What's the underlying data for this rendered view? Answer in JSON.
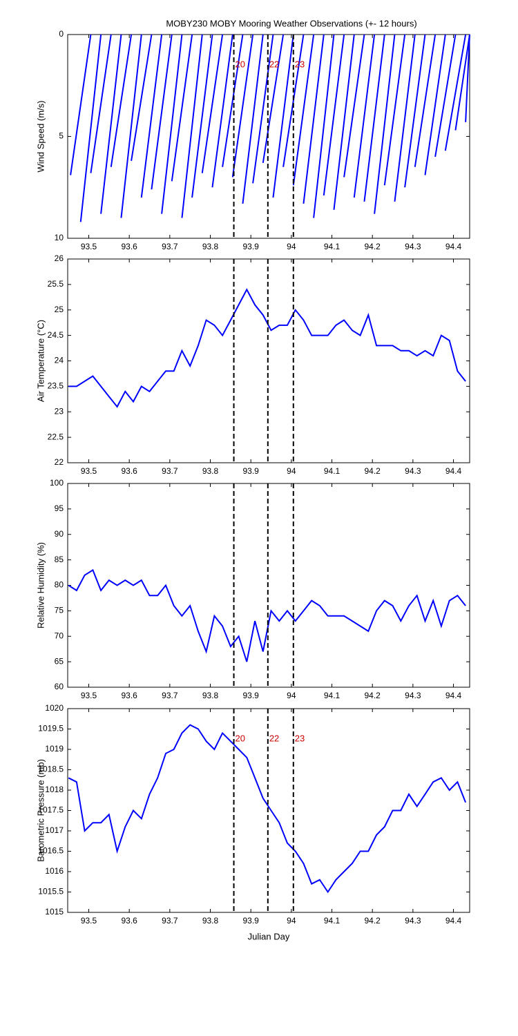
{
  "title": "MOBY230 MOBY Mooring Weather Observations (+- 12 hours)",
  "x_axis": {
    "label": "Julian Day",
    "xlim": [
      93.448,
      94.44
    ],
    "xticks": [
      93.5,
      93.6,
      93.7,
      93.8,
      93.9,
      94,
      94.1,
      94.2,
      94.3,
      94.4
    ]
  },
  "event_lines": {
    "x": [
      93.858,
      93.942,
      94.005
    ],
    "labels": [
      "20",
      "22",
      "23"
    ]
  },
  "chart_data": [
    {
      "type": "stick",
      "ylabel": "Wind Speed (m/s)",
      "color": "#0000ff",
      "ylim": [
        0,
        10
      ],
      "yticks": [
        0,
        5,
        10
      ],
      "inverted": true,
      "event_labels": true,
      "x": [
        93.455,
        93.48,
        93.505,
        93.53,
        93.555,
        93.58,
        93.605,
        93.63,
        93.655,
        93.68,
        93.705,
        93.73,
        93.755,
        93.78,
        93.805,
        93.83,
        93.855,
        93.88,
        93.905,
        93.93,
        93.955,
        93.98,
        94.005,
        94.03,
        94.055,
        94.08,
        94.105,
        94.13,
        94.155,
        94.18,
        94.205,
        94.23,
        94.255,
        94.28,
        94.305,
        94.33,
        94.355,
        94.38,
        94.405,
        94.43
      ],
      "x_top": [
        93.505,
        93.53,
        93.555,
        93.58,
        93.605,
        93.63,
        93.655,
        93.68,
        93.705,
        93.73,
        93.755,
        93.78,
        93.805,
        93.83,
        93.855,
        93.88,
        93.905,
        93.93,
        93.955,
        93.98,
        94.005,
        94.03,
        94.055,
        94.08,
        94.105,
        94.13,
        94.155,
        94.18,
        94.205,
        94.23,
        94.255,
        94.28,
        94.305,
        94.33,
        94.355,
        94.38,
        94.405,
        94.43,
        94.44,
        94.44
      ],
      "values": [
        6.9,
        9.2,
        6.8,
        8.8,
        6.5,
        9.0,
        6.2,
        8.0,
        7.6,
        8.8,
        7.2,
        9.0,
        8.0,
        6.8,
        7.5,
        6.5,
        7.0,
        8.3,
        7.3,
        6.3,
        8.0,
        6.5,
        7.4,
        8.3,
        9.0,
        7.9,
        8.6,
        7.0,
        8.0,
        8.2,
        8.8,
        7.4,
        8.2,
        7.5,
        6.5,
        6.9,
        6.0,
        5.7,
        4.7,
        4.3
      ]
    },
    {
      "type": "line",
      "ylabel": "Air Temperature (°C)",
      "color": "#0000ff",
      "ylim": [
        22,
        26
      ],
      "yticks": [
        22,
        22.5,
        23,
        23.5,
        24,
        24.5,
        25,
        25.5,
        26
      ],
      "x": [
        93.45,
        93.47,
        93.49,
        93.51,
        93.53,
        93.55,
        93.57,
        93.59,
        93.61,
        93.63,
        93.65,
        93.67,
        93.69,
        93.71,
        93.73,
        93.75,
        93.77,
        93.79,
        93.81,
        93.83,
        93.85,
        93.87,
        93.89,
        93.91,
        93.93,
        93.95,
        93.97,
        93.99,
        94.01,
        94.03,
        94.05,
        94.07,
        94.09,
        94.11,
        94.13,
        94.15,
        94.17,
        94.19,
        94.21,
        94.23,
        94.25,
        94.27,
        94.29,
        94.31,
        94.33,
        94.35,
        94.37,
        94.39,
        94.41,
        94.43
      ],
      "values": [
        23.5,
        23.5,
        23.6,
        23.7,
        23.5,
        23.3,
        23.1,
        23.4,
        23.2,
        23.5,
        23.4,
        23.6,
        23.8,
        23.8,
        24.2,
        23.9,
        24.3,
        24.8,
        24.7,
        24.5,
        24.8,
        25.1,
        25.4,
        25.1,
        24.9,
        24.6,
        24.7,
        24.7,
        25.0,
        24.8,
        24.5,
        24.5,
        24.5,
        24.7,
        24.8,
        24.6,
        24.5,
        24.9,
        24.3,
        24.3,
        24.3,
        24.2,
        24.2,
        24.1,
        24.2,
        24.1,
        24.5,
        24.4,
        23.8,
        23.6
      ]
    },
    {
      "type": "line",
      "ylabel": "Relative Humidity (%)",
      "color": "#0000ff",
      "ylim": [
        60,
        100
      ],
      "yticks": [
        60,
        65,
        70,
        75,
        80,
        85,
        90,
        95,
        100
      ],
      "x": [
        93.45,
        93.47,
        93.49,
        93.51,
        93.53,
        93.55,
        93.57,
        93.59,
        93.61,
        93.63,
        93.65,
        93.67,
        93.69,
        93.71,
        93.73,
        93.75,
        93.77,
        93.79,
        93.81,
        93.83,
        93.85,
        93.87,
        93.89,
        93.91,
        93.93,
        93.95,
        93.97,
        93.99,
        94.01,
        94.03,
        94.05,
        94.07,
        94.09,
        94.11,
        94.13,
        94.15,
        94.17,
        94.19,
        94.21,
        94.23,
        94.25,
        94.27,
        94.29,
        94.31,
        94.33,
        94.35,
        94.37,
        94.39,
        94.41,
        94.43
      ],
      "values": [
        80,
        79,
        82,
        83,
        79,
        81,
        80,
        81,
        80,
        81,
        78,
        78,
        80,
        76,
        74,
        76,
        71,
        67,
        74,
        72,
        68,
        70,
        65,
        73,
        67,
        75,
        73,
        75,
        73,
        75,
        77,
        76,
        74,
        74,
        74,
        73,
        72,
        71,
        75,
        77,
        76,
        73,
        76,
        78,
        73,
        77,
        72,
        77,
        78,
        76
      ]
    },
    {
      "type": "line",
      "ylabel": "Barometric Pressure (mb)",
      "color": "#0000ff",
      "ylim": [
        1015,
        1020
      ],
      "yticks": [
        1015,
        1015.5,
        1016,
        1016.5,
        1017,
        1017.5,
        1018,
        1018.5,
        1019,
        1019.5,
        1020
      ],
      "event_labels": true,
      "show_xlabel": true,
      "x": [
        93.45,
        93.47,
        93.49,
        93.51,
        93.53,
        93.55,
        93.57,
        93.59,
        93.61,
        93.63,
        93.65,
        93.67,
        93.69,
        93.71,
        93.73,
        93.75,
        93.77,
        93.79,
        93.81,
        93.83,
        93.85,
        93.87,
        93.89,
        93.91,
        93.93,
        93.95,
        93.97,
        93.99,
        94.01,
        94.03,
        94.05,
        94.07,
        94.09,
        94.11,
        94.13,
        94.15,
        94.17,
        94.19,
        94.21,
        94.23,
        94.25,
        94.27,
        94.29,
        94.31,
        94.33,
        94.35,
        94.37,
        94.39,
        94.41,
        94.43
      ],
      "values": [
        1018.3,
        1018.2,
        1017.0,
        1017.2,
        1017.2,
        1017.4,
        1016.5,
        1017.1,
        1017.5,
        1017.3,
        1017.9,
        1018.3,
        1018.9,
        1019.0,
        1019.4,
        1019.6,
        1019.5,
        1019.2,
        1019.0,
        1019.4,
        1019.2,
        1019.0,
        1018.8,
        1018.3,
        1017.8,
        1017.5,
        1017.2,
        1016.7,
        1016.5,
        1016.2,
        1015.7,
        1015.8,
        1015.5,
        1015.8,
        1016.0,
        1016.2,
        1016.5,
        1016.5,
        1016.9,
        1017.1,
        1017.5,
        1017.5,
        1017.9,
        1017.6,
        1017.9,
        1018.2,
        1018.3,
        1018.0,
        1018.2,
        1017.7
      ]
    }
  ]
}
